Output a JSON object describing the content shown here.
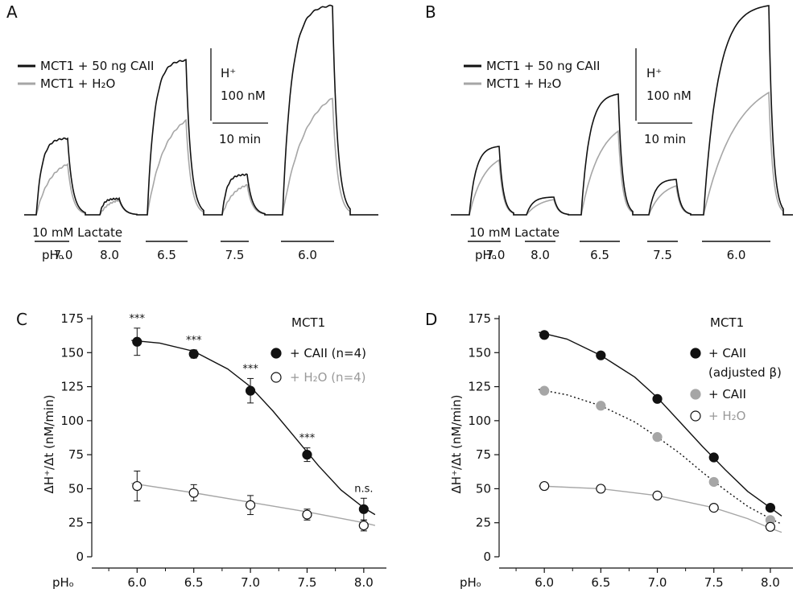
{
  "panels": {
    "A": {
      "letter": "A",
      "legend": [
        "MCT1 + 50 ng CAII",
        "MCT1 + H₂O"
      ],
      "scale_y_label": "H⁺",
      "scale_y_value": "100 nM",
      "scale_x_value": "10 min",
      "lactate_label": "10 mM Lactate",
      "ph_prefix": "pHₒ",
      "ph_steps": [
        "7.0",
        "8.0",
        "6.5",
        "7.5",
        "6.0"
      ]
    },
    "B": {
      "letter": "B",
      "legend": [
        "MCT1 + 50 ng CAII",
        "MCT1 + H₂O"
      ],
      "scale_y_label": "H⁺",
      "scale_y_value": "100 nM",
      "scale_x_value": "10 min",
      "lactate_label": "10 mM Lactate",
      "ph_prefix": "pHₒ",
      "ph_steps": [
        "7.0",
        "8.0",
        "6.5",
        "7.5",
        "6.0"
      ]
    },
    "C": {
      "letter": "C",
      "ylabel": "ΔH⁺/Δt (nM/min)",
      "xlabel": "pHₒ",
      "legend_title": "MCT1",
      "legend": [
        "+ CAII (n=4)",
        "+ H₂O  (n=4)"
      ],
      "sig": [
        "***",
        "***",
        "***",
        "***",
        "n.s."
      ]
    },
    "D": {
      "letter": "D",
      "ylabel": "ΔH⁺/Δt (nM/min)",
      "xlabel": "pHₒ",
      "legend_title": "MCT1",
      "legend": [
        "+ CAII",
        "(adjusted β)",
        "+ CAII",
        "+ H₂O"
      ]
    }
  },
  "colors": {
    "black": "#111111",
    "gray": "#a6a6a6"
  },
  "chart_data": [
    {
      "type": "line",
      "panel": "A",
      "x_unit": "min",
      "y_unit": "nM H+",
      "pulses": [
        {
          "pHo": "7.0",
          "peak_caii": 95,
          "peak_h2o": 63
        },
        {
          "pHo": "8.0",
          "peak_caii": 20,
          "peak_h2o": 18
        },
        {
          "pHo": "6.5",
          "peak_caii": 192,
          "peak_h2o": 117
        },
        {
          "pHo": "7.5",
          "peak_caii": 50,
          "peak_h2o": 37
        },
        {
          "pHo": "6.0",
          "peak_caii": 260,
          "peak_h2o": 145
        }
      ]
    },
    {
      "type": "line",
      "panel": "B",
      "x_unit": "min",
      "y_unit": "nM H+",
      "pulses": [
        {
          "pHo": "7.0",
          "peak_caii": 85,
          "peak_h2o": 68
        },
        {
          "pHo": "8.0",
          "peak_caii": 22,
          "peak_h2o": 19
        },
        {
          "pHo": "6.5",
          "peak_caii": 150,
          "peak_h2o": 104
        },
        {
          "pHo": "7.5",
          "peak_caii": 44,
          "peak_h2o": 36
        },
        {
          "pHo": "6.0",
          "peak_caii": 260,
          "peak_h2o": 152
        }
      ]
    },
    {
      "type": "scatter",
      "panel": "C",
      "xlabel": "pHₒ",
      "ylabel": "ΔH⁺/Δt (nM/min)",
      "xlim": [
        5.6,
        8.2
      ],
      "ylim": [
        0,
        175
      ],
      "xticks": [
        "6.0",
        "6.5",
        "7.0",
        "7.5",
        "8.0"
      ],
      "yticks": [
        "0",
        "25",
        "50",
        "75",
        "100",
        "125",
        "150",
        "175"
      ],
      "series": [
        {
          "name": "+ CAII (n=4)",
          "x": [
            6.0,
            6.5,
            7.0,
            7.5,
            8.0
          ],
          "y": [
            158,
            149,
            122,
            75,
            35
          ],
          "err": [
            10,
            3,
            9,
            5,
            8
          ],
          "fill": "black",
          "fit": {
            "x": [
              5.95,
              6.2,
              6.5,
              6.8,
              7.0,
              7.2,
              7.4,
              7.6,
              7.8,
              8.0,
              8.1
            ],
            "y": [
              159,
              157,
              151,
              138,
              125,
              107,
              87,
              67,
              49,
              36,
              31
            ]
          }
        },
        {
          "name": "+ H₂O  (n=4)",
          "x": [
            6.0,
            6.5,
            7.0,
            7.5,
            8.0
          ],
          "y": [
            52,
            47,
            38,
            31,
            23
          ],
          "err": [
            11,
            6,
            7,
            4,
            4
          ],
          "fill": "white",
          "fit": {
            "x": [
              5.95,
              6.5,
              7.0,
              7.5,
              8.0,
              8.1
            ],
            "y": [
              54,
              47,
              40,
              33,
              25,
              23
            ]
          }
        }
      ]
    },
    {
      "type": "scatter",
      "panel": "D",
      "xlabel": "pHₒ",
      "ylabel": "ΔH⁺/Δt (nM/min)",
      "xlim": [
        5.6,
        8.2
      ],
      "ylim": [
        0,
        175
      ],
      "xticks": [
        "6.0",
        "6.5",
        "7.0",
        "7.5",
        "8.0"
      ],
      "yticks": [
        "0",
        "25",
        "50",
        "75",
        "100",
        "125",
        "150",
        "175"
      ],
      "series": [
        {
          "name": "+ CAII (adjusted β)",
          "x": [
            6.0,
            6.5,
            7.0,
            7.5,
            8.0
          ],
          "y": [
            163,
            148,
            116,
            73,
            36
          ],
          "fill": "black",
          "fit": {
            "x": [
              5.95,
              6.2,
              6.5,
              6.8,
              7.0,
              7.2,
              7.4,
              7.6,
              7.8,
              8.0,
              8.1
            ],
            "y": [
              165,
              160,
              148,
              132,
              117,
              99,
              81,
              64,
              48,
              36,
              30
            ]
          }
        },
        {
          "name": "+ CAII",
          "x": [
            6.0,
            6.5,
            7.0,
            7.5,
            8.0
          ],
          "y": [
            122,
            111,
            88,
            55,
            27
          ],
          "fill": "gray",
          "fit": {
            "x": [
              5.95,
              6.2,
              6.5,
              6.8,
              7.0,
              7.2,
              7.4,
              7.6,
              7.8,
              8.0,
              8.1
            ],
            "y": [
              123,
              119,
              111,
              99,
              88,
              76,
              62,
              49,
              37,
              28,
              24
            ]
          }
        },
        {
          "name": "+ H₂O",
          "x": [
            6.0,
            6.5,
            7.0,
            7.5,
            8.0
          ],
          "y": [
            52,
            50,
            45,
            36,
            22
          ],
          "fill": "white",
          "fit": {
            "x": [
              5.95,
              6.5,
              7.0,
              7.5,
              7.8,
              8.0,
              8.1
            ],
            "y": [
              52,
              50,
              45,
              36,
              28,
              21,
              18
            ]
          }
        }
      ]
    }
  ]
}
